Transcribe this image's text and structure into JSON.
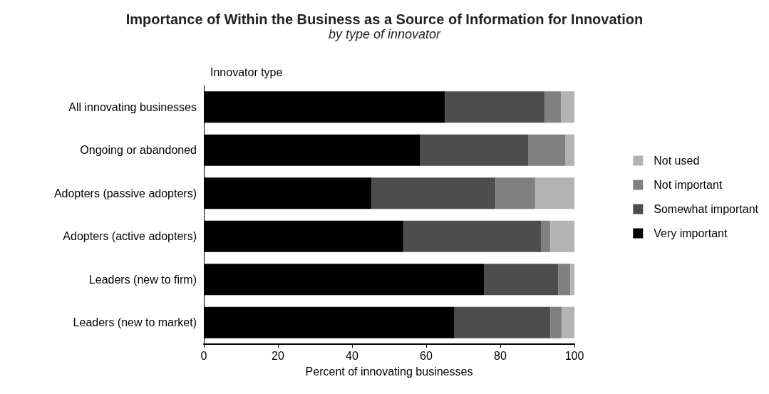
{
  "chart_data": {
    "type": "bar",
    "orientation": "horizontal",
    "stacked": true,
    "title": "Importance of Within the Business as a Source of Information for Innovation",
    "subtitle": "by type of innovator",
    "xlabel": "Percent of innovating businesses",
    "ylabel": "Innovator type",
    "categories": [
      "All innovating businesses",
      "Ongoing or abandoned",
      "Adopters (passive adopters)",
      "Adopters (active adopters)",
      "Leaders (new to firm)",
      "Leaders (new to market)"
    ],
    "series": [
      {
        "name": "Very important",
        "color": "#000000",
        "values": [
          65.1,
          58.4,
          45.2,
          53.9,
          75.7,
          67.5
        ]
      },
      {
        "name": "Somewhat important",
        "color": "#4d4d4d",
        "values": [
          26.9,
          29.1,
          33.5,
          37.2,
          19.9,
          26.0
        ]
      },
      {
        "name": "Not important",
        "color": "#808080",
        "values": [
          4.4,
          10.0,
          10.7,
          2.4,
          3.3,
          3.1
        ]
      },
      {
        "name": "Not used",
        "color": "#b3b3b3",
        "values": [
          3.6,
          2.5,
          10.6,
          6.5,
          1.1,
          3.4
        ]
      }
    ],
    "xlim": [
      0,
      100
    ],
    "xticks": [
      0,
      20,
      40,
      60,
      80,
      100
    ],
    "grid": false,
    "legend": "right"
  }
}
